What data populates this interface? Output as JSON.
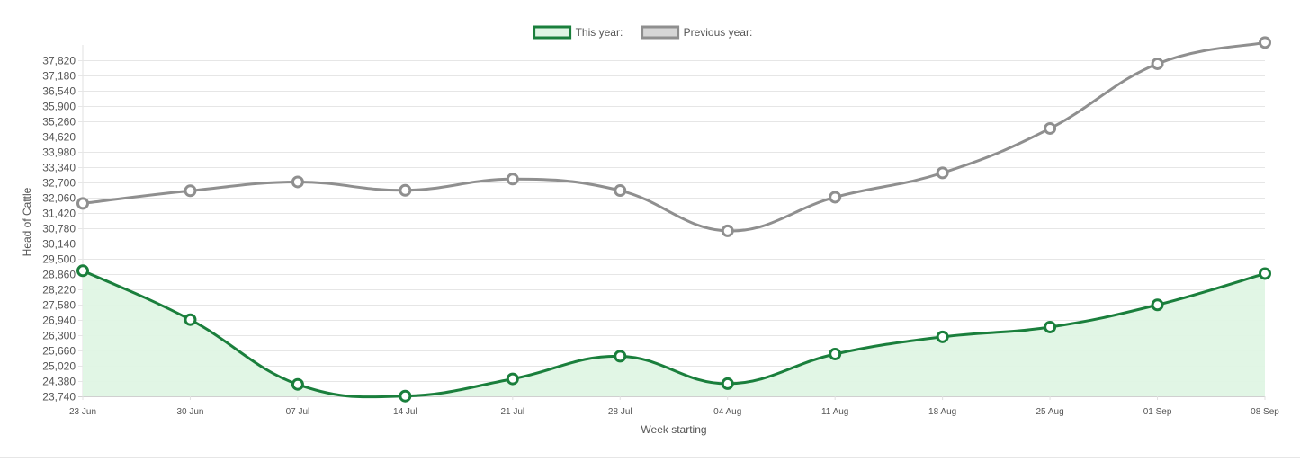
{
  "chart_data": {
    "type": "line",
    "xlabel": "Week starting",
    "ylabel": "Head of Cattle",
    "categories": [
      "23 Jun",
      "30 Jun",
      "07 Jul",
      "14 Jul",
      "21 Jul",
      "28 Jul",
      "04 Aug",
      "11 Aug",
      "18 Aug",
      "25 Aug",
      "01 Sep",
      "08 Sep"
    ],
    "ylim": [
      23740,
      38460
    ],
    "yticks": [
      23740,
      24380,
      25020,
      25660,
      26300,
      26940,
      27580,
      28220,
      28860,
      29500,
      30140,
      30780,
      31420,
      32060,
      32700,
      33340,
      33980,
      34620,
      35260,
      35900,
      36540,
      37180,
      37820
    ],
    "ytick_labels": [
      "23,740",
      "24,380",
      "25,020",
      "25,660",
      "26,300",
      "26,940",
      "27,580",
      "28,220",
      "28,860",
      "29,500",
      "30,140",
      "30,780",
      "31,420",
      "32,060",
      "32,700",
      "33,340",
      "33,980",
      "34,620",
      "35,260",
      "35,900",
      "36,540",
      "37,180",
      "37,820"
    ],
    "grid": true,
    "legend_position": "top-center",
    "series": [
      {
        "name": "This year:",
        "color": "#1a7f3c",
        "fill": "#dff5e4",
        "filled": true,
        "values": [
          29000,
          26950,
          24240,
          23750,
          24470,
          25420,
          24270,
          25510,
          26230,
          26640,
          27570,
          28880
        ]
      },
      {
        "name": "Previous year:",
        "color": "#8f8f8f",
        "fill": "#d6d6d6",
        "filled": false,
        "values": [
          31820,
          32350,
          32720,
          32370,
          32840,
          32360,
          30670,
          32080,
          33100,
          34960,
          37670,
          38560
        ]
      }
    ]
  }
}
